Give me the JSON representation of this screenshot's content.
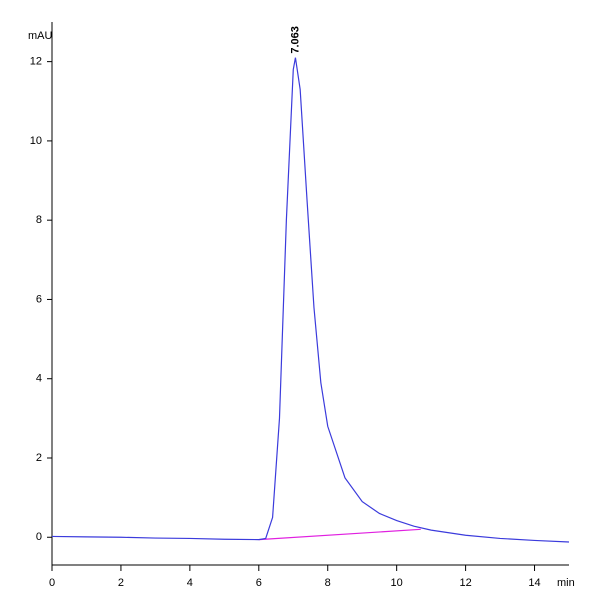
{
  "chart_data": {
    "type": "line",
    "x_label": "min",
    "y_label": "mAU",
    "x": [
      0,
      1,
      2,
      3,
      4,
      5,
      6,
      6.2,
      6.4,
      6.6,
      6.8,
      7.0,
      7.063,
      7.2,
      7.4,
      7.6,
      7.8,
      8.0,
      8.5,
      9.0,
      9.5,
      10,
      10.5,
      11,
      12,
      13,
      14,
      15
    ],
    "values": [
      0.02,
      0.01,
      0.0,
      -0.02,
      -0.03,
      -0.05,
      -0.06,
      -0.03,
      0.5,
      3.0,
      8.0,
      11.8,
      12.1,
      11.3,
      8.5,
      5.8,
      3.9,
      2.8,
      1.5,
      0.9,
      0.6,
      0.42,
      0.28,
      0.18,
      0.05,
      -0.03,
      -0.08,
      -0.12
    ],
    "color": "#3b3bdc",
    "baseline": {
      "x": [
        6.0,
        10.7
      ],
      "values": [
        -0.06,
        0.2
      ],
      "color": "#e020e0"
    },
    "annotations": [
      {
        "text": "7.063",
        "x": 7.063,
        "y": 12.1
      }
    ],
    "xlim": [
      0,
      15
    ],
    "xticks": [
      0,
      2,
      4,
      6,
      8,
      10,
      12,
      14
    ],
    "ylim": [
      -0.7,
      13
    ],
    "yticks": [
      0,
      2,
      4,
      6,
      8,
      10,
      12
    ]
  }
}
